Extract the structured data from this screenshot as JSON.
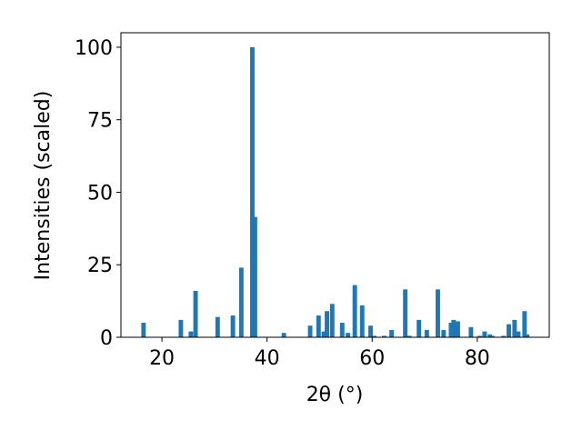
{
  "chart_data": {
    "type": "bar",
    "xlabel": "2θ (°)",
    "ylabel": "Intensities (scaled)",
    "x": [
      16.5,
      23.6,
      25.5,
      26.4,
      30.6,
      33.5,
      35.1,
      37.2,
      37.7,
      43.2,
      48.2,
      49.8,
      50.8,
      51.4,
      52.4,
      54.3,
      55.4,
      56.7,
      58.1,
      59.7,
      60.4,
      62.3,
      63.7,
      66.3,
      67.1,
      68.9,
      70.4,
      72.5,
      73.6,
      75.0,
      75.5,
      76.3,
      78.8,
      80.5,
      81.4,
      82.4,
      82.9,
      85.0,
      86.0,
      87.1,
      87.8,
      89.0,
      89.5
    ],
    "values": [
      5,
      6,
      2,
      16,
      7,
      7.5,
      24,
      100,
      41.5,
      1.5,
      4,
      7.5,
      2,
      9,
      11.5,
      5,
      1.5,
      18,
      11,
      4,
      0.5,
      0.5,
      2.5,
      16.5,
      0.5,
      6,
      2.5,
      16.5,
      2.5,
      5,
      6,
      5.5,
      3.5,
      0.5,
      2,
      1,
      0.5,
      0.5,
      4.5,
      6,
      2,
      9,
      1
    ],
    "color": "#1f77b4",
    "xlim": [
      12.2,
      93.7
    ],
    "xticks": [
      20,
      40,
      60,
      80
    ],
    "ylim": [
      0,
      105
    ],
    "yticks": [
      0,
      25,
      50,
      75,
      100
    ],
    "grid": false
  }
}
